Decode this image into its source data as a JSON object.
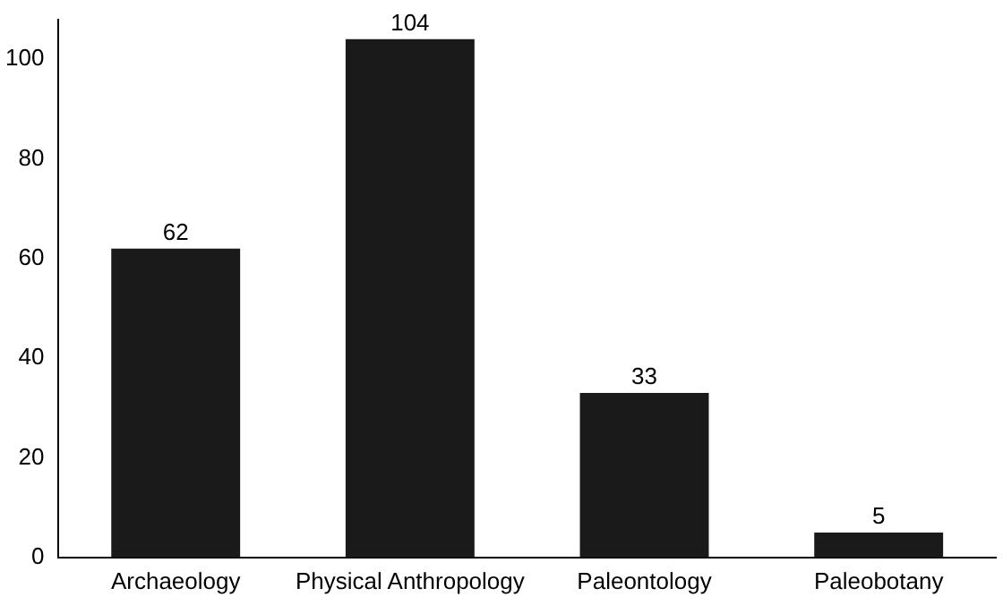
{
  "chart_data": {
    "type": "bar",
    "categories": [
      "Archaeology",
      "Physical Anthropology",
      "Paleontology",
      "Paleobotany"
    ],
    "values": [
      62,
      104,
      33,
      5
    ],
    "color": "#1a1a1a",
    "ylim": [
      0,
      108
    ],
    "yticks": [
      0,
      20,
      40,
      60,
      80,
      100
    ],
    "grid": false,
    "data_labels": true
  }
}
